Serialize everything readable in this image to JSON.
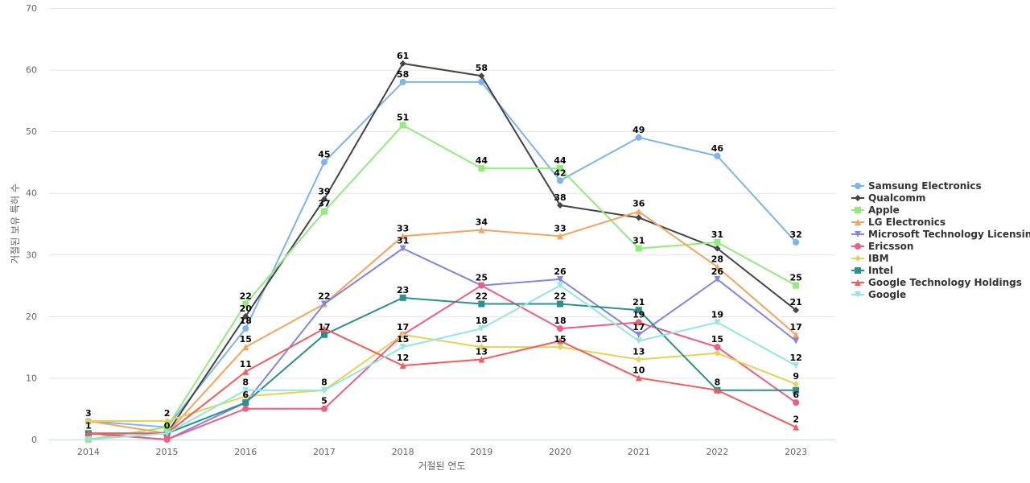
{
  "chart_data": {
    "type": "line",
    "title": "",
    "xlabel": "거절된 연도",
    "ylabel": "거절된 보유 특허 수",
    "x": [
      "2014",
      "2015",
      "2016",
      "2017",
      "2018",
      "2019",
      "2020",
      "2021",
      "2022",
      "2023"
    ],
    "ylim": [
      0,
      70
    ],
    "yticks": [
      0,
      10,
      20,
      30,
      40,
      50,
      60,
      70
    ],
    "grid": true,
    "legend": "right",
    "series": [
      {
        "name": "Samsung Electronics",
        "color": "#7cb5ec",
        "marker": "circle",
        "values": [
          3,
          2,
          18,
          45,
          58,
          58,
          42,
          49,
          46,
          32
        ]
      },
      {
        "name": "Qualcomm",
        "color": "#434348",
        "marker": "diamond",
        "values": [
          1,
          1,
          20,
          39,
          61,
          59,
          38,
          36,
          31,
          21
        ]
      },
      {
        "name": "Apple",
        "color": "#90ed7d",
        "marker": "square",
        "values": [
          0,
          2,
          22,
          37,
          51,
          44,
          44,
          31,
          32,
          25
        ]
      },
      {
        "name": "LG Electronics",
        "color": "#f7a35c",
        "marker": "triangle",
        "values": [
          3,
          1,
          15,
          22,
          33,
          34,
          33,
          37,
          28,
          17
        ]
      },
      {
        "name": "Microsoft Technology Licensing",
        "color": "#8085e9",
        "marker": "triangle-down",
        "values": [
          1,
          0,
          6,
          22,
          31,
          25,
          26,
          17,
          26,
          16
        ]
      },
      {
        "name": "Ericsson",
        "color": "#f15c80",
        "marker": "circle",
        "values": [
          1,
          0,
          5,
          5,
          17,
          25,
          18,
          19,
          15,
          6
        ]
      },
      {
        "name": "IBM",
        "color": "#e4d354",
        "marker": "diamond",
        "values": [
          3,
          3,
          7,
          8,
          17,
          15,
          15,
          13,
          14,
          9
        ]
      },
      {
        "name": "Intel",
        "color": "#2b908f",
        "marker": "square",
        "values": [
          1,
          1,
          6,
          17,
          23,
          22,
          22,
          21,
          8,
          8
        ]
      },
      {
        "name": "Google Technology Holdings",
        "color": "#f45b5b",
        "marker": "triangle",
        "values": [
          1,
          1,
          11,
          18,
          12,
          13,
          16,
          10,
          8,
          2
        ]
      },
      {
        "name": "Google",
        "color": "#91e8e1",
        "marker": "triangle-down",
        "values": [
          0,
          1,
          8,
          8,
          15,
          18,
          25,
          16,
          19,
          12
        ]
      }
    ],
    "data_labels": [
      {
        "x": "2014",
        "y": 3,
        "text": "3"
      },
      {
        "x": "2014",
        "y": 1,
        "text": "1"
      },
      {
        "x": "2015",
        "y": 3,
        "text": "2"
      },
      {
        "x": "2015",
        "y": 1,
        "text": "0"
      },
      {
        "x": "2016",
        "y": 22,
        "text": "22"
      },
      {
        "x": "2016",
        "y": 20,
        "text": "20"
      },
      {
        "x": "2016",
        "y": 18,
        "text": "18"
      },
      {
        "x": "2016",
        "y": 15,
        "text": "15"
      },
      {
        "x": "2016",
        "y": 11,
        "text": "11"
      },
      {
        "x": "2016",
        "y": 8,
        "text": "8"
      },
      {
        "x": "2016",
        "y": 6,
        "text": "6"
      },
      {
        "x": "2017",
        "y": 45,
        "text": "45"
      },
      {
        "x": "2017",
        "y": 39,
        "text": "39"
      },
      {
        "x": "2017",
        "y": 37,
        "text": "37"
      },
      {
        "x": "2017",
        "y": 22,
        "text": "22"
      },
      {
        "x": "2017",
        "y": 17,
        "text": "17"
      },
      {
        "x": "2017",
        "y": 8,
        "text": "8"
      },
      {
        "x": "2017",
        "y": 5,
        "text": "5"
      },
      {
        "x": "2018",
        "y": 61,
        "text": "61"
      },
      {
        "x": "2018",
        "y": 58,
        "text": "58"
      },
      {
        "x": "2018",
        "y": 51,
        "text": "51"
      },
      {
        "x": "2018",
        "y": 33,
        "text": "33"
      },
      {
        "x": "2018",
        "y": 31,
        "text": "31"
      },
      {
        "x": "2018",
        "y": 23,
        "text": "23"
      },
      {
        "x": "2018",
        "y": 17,
        "text": "17"
      },
      {
        "x": "2018",
        "y": 15,
        "text": "15"
      },
      {
        "x": "2018",
        "y": 12,
        "text": "12"
      },
      {
        "x": "2019",
        "y": 59,
        "text": "58"
      },
      {
        "x": "2019",
        "y": 44,
        "text": "44"
      },
      {
        "x": "2019",
        "y": 34,
        "text": "34"
      },
      {
        "x": "2019",
        "y": 25,
        "text": "25"
      },
      {
        "x": "2019",
        "y": 22,
        "text": "22"
      },
      {
        "x": "2019",
        "y": 18,
        "text": "18"
      },
      {
        "x": "2019",
        "y": 15,
        "text": "15"
      },
      {
        "x": "2019",
        "y": 13,
        "text": "13"
      },
      {
        "x": "2020",
        "y": 44,
        "text": "44"
      },
      {
        "x": "2020",
        "y": 42,
        "text": "42"
      },
      {
        "x": "2020",
        "y": 38,
        "text": "38"
      },
      {
        "x": "2020",
        "y": 33,
        "text": "33"
      },
      {
        "x": "2020",
        "y": 26,
        "text": "26"
      },
      {
        "x": "2020",
        "y": 22,
        "text": "22"
      },
      {
        "x": "2020",
        "y": 18,
        "text": "18"
      },
      {
        "x": "2020",
        "y": 15,
        "text": "15"
      },
      {
        "x": "2021",
        "y": 49,
        "text": "49"
      },
      {
        "x": "2021",
        "y": 37,
        "text": "36"
      },
      {
        "x": "2021",
        "y": 31,
        "text": "31"
      },
      {
        "x": "2021",
        "y": 21,
        "text": "21"
      },
      {
        "x": "2021",
        "y": 19,
        "text": "19"
      },
      {
        "x": "2021",
        "y": 17,
        "text": "17"
      },
      {
        "x": "2021",
        "y": 13,
        "text": "13"
      },
      {
        "x": "2021",
        "y": 10,
        "text": "10"
      },
      {
        "x": "2022",
        "y": 46,
        "text": "46"
      },
      {
        "x": "2022",
        "y": 32,
        "text": "31"
      },
      {
        "x": "2022",
        "y": 28,
        "text": "28"
      },
      {
        "x": "2022",
        "y": 26,
        "text": "26"
      },
      {
        "x": "2022",
        "y": 19,
        "text": "19"
      },
      {
        "x": "2022",
        "y": 15,
        "text": "15"
      },
      {
        "x": "2022",
        "y": 8,
        "text": "8"
      },
      {
        "x": "2023",
        "y": 32,
        "text": "32"
      },
      {
        "x": "2023",
        "y": 25,
        "text": "25"
      },
      {
        "x": "2023",
        "y": 21,
        "text": "21"
      },
      {
        "x": "2023",
        "y": 17,
        "text": "17"
      },
      {
        "x": "2023",
        "y": 12,
        "text": "12"
      },
      {
        "x": "2023",
        "y": 9,
        "text": "9"
      },
      {
        "x": "2023",
        "y": 6,
        "text": "6"
      },
      {
        "x": "2023",
        "y": 2,
        "text": "2"
      }
    ]
  }
}
